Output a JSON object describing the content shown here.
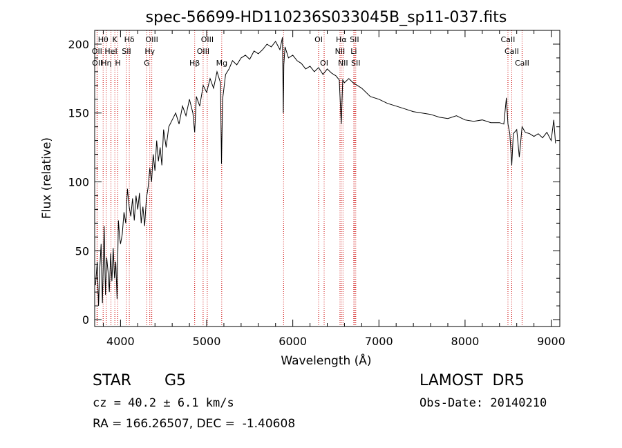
{
  "chart_data": {
    "type": "line",
    "title": "spec-56699-HD110236S033045B_sp11-037.fits",
    "xlabel": "Wavelength (Å)",
    "ylabel": "Flux (relative)",
    "xlim": [
      3700,
      9100
    ],
    "ylim": [
      -5,
      210
    ],
    "xticks": [
      4000,
      5000,
      6000,
      7000,
      8000,
      9000
    ],
    "yticks": [
      0,
      50,
      100,
      150,
      200
    ],
    "grid": false,
    "line_color": "#000000",
    "marker_color": "#cc0000",
    "spectrum": {
      "x": [
        3710,
        3730,
        3745,
        3760,
        3775,
        3790,
        3810,
        3825,
        3840,
        3855,
        3870,
        3885,
        3900,
        3915,
        3930,
        3945,
        3960,
        3975,
        3990,
        4000,
        4020,
        4040,
        4060,
        4080,
        4100,
        4120,
        4140,
        4160,
        4180,
        4200,
        4220,
        4240,
        4260,
        4280,
        4300,
        4320,
        4340,
        4360,
        4380,
        4400,
        4420,
        4440,
        4460,
        4480,
        4500,
        4530,
        4560,
        4600,
        4640,
        4680,
        4720,
        4760,
        4800,
        4840,
        4861,
        4880,
        4920,
        4960,
        5000,
        5040,
        5080,
        5120,
        5160,
        5172,
        5185,
        5220,
        5260,
        5300,
        5350,
        5400,
        5450,
        5500,
        5550,
        5600,
        5650,
        5700,
        5750,
        5800,
        5850,
        5880,
        5890,
        5896,
        5910,
        5950,
        6000,
        6050,
        6100,
        6150,
        6200,
        6250,
        6300,
        6350,
        6400,
        6450,
        6500,
        6540,
        6563,
        6580,
        6600,
        6650,
        6700,
        6750,
        6800,
        6900,
        7000,
        7100,
        7200,
        7300,
        7400,
        7500,
        7600,
        7700,
        7800,
        7900,
        8000,
        8100,
        8200,
        8300,
        8400,
        8450,
        8480,
        8498,
        8520,
        8542,
        8560,
        8600,
        8630,
        8662,
        8700,
        8750,
        8800,
        8850,
        8900,
        8950,
        9000,
        9030,
        9050
      ],
      "y": [
        25,
        42,
        10,
        38,
        55,
        12,
        68,
        18,
        45,
        35,
        20,
        48,
        28,
        52,
        30,
        42,
        15,
        72,
        60,
        55,
        62,
        78,
        70,
        95,
        82,
        75,
        88,
        72,
        90,
        80,
        92,
        70,
        82,
        68,
        88,
        96,
        110,
        100,
        120,
        108,
        130,
        115,
        125,
        112,
        138,
        125,
        140,
        145,
        150,
        142,
        155,
        148,
        160,
        150,
        136,
        162,
        155,
        170,
        165,
        175,
        168,
        180,
        172,
        113,
        160,
        178,
        182,
        188,
        185,
        190,
        192,
        189,
        195,
        193,
        196,
        200,
        198,
        202,
        196,
        205,
        150,
        185,
        198,
        190,
        192,
        188,
        186,
        182,
        184,
        180,
        183,
        178,
        182,
        179,
        177,
        174,
        142,
        174,
        172,
        175,
        172,
        170,
        168,
        162,
        160,
        157,
        155,
        153,
        151,
        150,
        149,
        147,
        146,
        148,
        145,
        144,
        145,
        143,
        143,
        142,
        161,
        142,
        135,
        112,
        135,
        138,
        118,
        140,
        136,
        135,
        133,
        135,
        132,
        136,
        130,
        145,
        128
      ]
    },
    "spectral_lines": [
      {
        "label": "Hθ",
        "x": 3798,
        "row": 0
      },
      {
        "label": "K",
        "x": 3934,
        "row": 0
      },
      {
        "label": "Hδ",
        "x": 4102,
        "row": 0
      },
      {
        "label": "OIII",
        "x": 4363,
        "row": 0
      },
      {
        "label": "OIII",
        "x": 5007,
        "row": 0
      },
      {
        "label": "OI",
        "x": 6300,
        "row": 0
      },
      {
        "label": "Hα",
        "x": 6563,
        "row": 0
      },
      {
        "label": "SII",
        "x": 6716,
        "row": 0
      },
      {
        "label": "CaII",
        "x": 8498,
        "row": 0
      },
      {
        "label": "OII",
        "x": 3727,
        "row": 1
      },
      {
        "label": "HeI",
        "x": 3889,
        "row": 1
      },
      {
        "label": "SII",
        "x": 4069,
        "row": 1
      },
      {
        "label": "Hγ",
        "x": 4340,
        "row": 1
      },
      {
        "label": "OIII",
        "x": 4959,
        "row": 1
      },
      {
        "label": "NII",
        "x": 6548,
        "row": 1
      },
      {
        "label": "Li",
        "x": 6708,
        "row": 1
      },
      {
        "label": "CaII",
        "x": 8542,
        "row": 1
      },
      {
        "label": "OII",
        "x": 3730,
        "row": 2
      },
      {
        "label": "Hη",
        "x": 3835,
        "row": 2
      },
      {
        "label": "H",
        "x": 3969,
        "row": 2
      },
      {
        "label": "G",
        "x": 4305,
        "row": 2
      },
      {
        "label": "Hβ",
        "x": 4861,
        "row": 2
      },
      {
        "label": "Mg",
        "x": 5175,
        "row": 2
      },
      {
        "label": "OI",
        "x": 6364,
        "row": 2
      },
      {
        "label": "NII",
        "x": 6583,
        "row": 2
      },
      {
        "label": "SII",
        "x": 6731,
        "row": 2
      },
      {
        "label": "CaII",
        "x": 8662,
        "row": 2
      }
    ],
    "extra_line_markers": [
      3889,
      5893
    ]
  },
  "info": {
    "object_class": "STAR",
    "subclass": "G5",
    "redshift_text": "cz = 40.2 ± 6.1 km/s",
    "coords_text": "RA = 166.26507, DEC =  -1.40608",
    "survey": "LAMOST  DR5",
    "obs_date": "Obs-Date: 20140210"
  }
}
